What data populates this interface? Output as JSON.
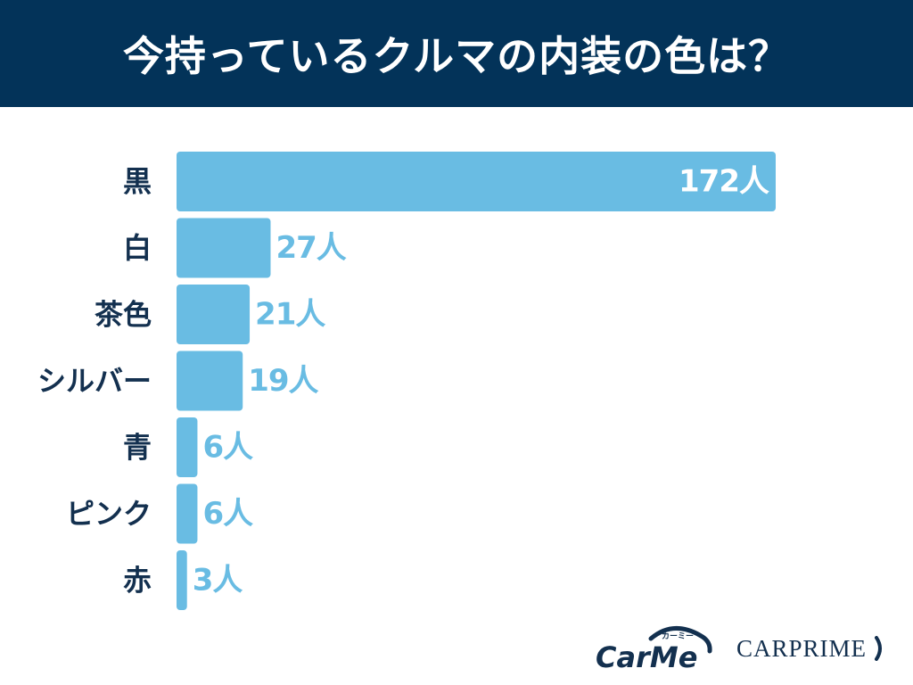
{
  "header": {
    "title": "今持っているクルマの内装の色は？"
  },
  "colors": {
    "header_bg": "#033359",
    "bar": "#69bce3",
    "value_label_outside": "#69bce3",
    "value_label_inside": "#ffffff",
    "category_label": "#13304f"
  },
  "chart_data": {
    "type": "bar",
    "orientation": "horizontal",
    "title": "今持っているクルマの内装の色は？",
    "categories": [
      "黒",
      "白",
      "茶色",
      "シルバー",
      "青",
      "ピンク",
      "赤"
    ],
    "values": [
      172,
      27,
      21,
      19,
      6,
      6,
      3
    ],
    "value_labels": [
      "172人",
      "27人",
      "21人",
      "19人",
      "6人",
      "6人",
      "3人"
    ],
    "unit": "人",
    "xlabel": "",
    "ylabel": "",
    "grid": false
  },
  "logos": {
    "carme": {
      "text": "CarMe",
      "sub": "カーミー"
    },
    "carprime": {
      "text": "CARPRIME"
    }
  }
}
